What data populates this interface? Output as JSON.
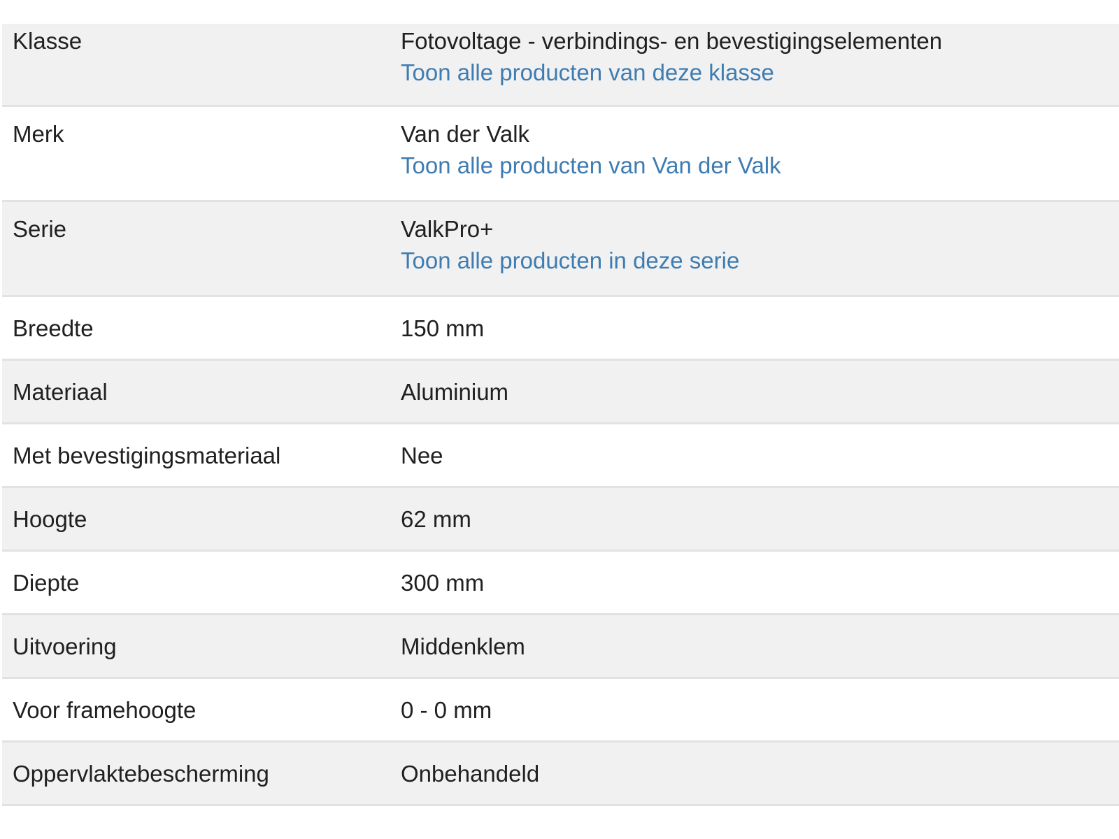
{
  "table": {
    "rows": [
      {
        "label": "Klasse",
        "value": "Fotovoltage - verbindings- en bevestigingselementen",
        "link": "Toon alle producten van deze klasse"
      },
      {
        "label": "Merk",
        "value": "Van der Valk",
        "link": "Toon alle producten van Van der Valk"
      },
      {
        "label": "Serie",
        "value": "ValkPro+",
        "link": "Toon alle producten in deze serie"
      },
      {
        "label": "Breedte",
        "value": "150 mm"
      },
      {
        "label": "Materiaal",
        "value": "Aluminium"
      },
      {
        "label": "Met bevestigingsmateriaal",
        "value": "Nee"
      },
      {
        "label": "Hoogte",
        "value": "62 mm"
      },
      {
        "label": "Diepte",
        "value": "300 mm"
      },
      {
        "label": "Uitvoering",
        "value": "Middenklem"
      },
      {
        "label": "Voor framehoogte",
        "value": "0 - 0 mm"
      },
      {
        "label": "Oppervlaktebescherming",
        "value": "Onbehandeld"
      }
    ],
    "colors": {
      "row_alt_bg": "#f1f1f1",
      "row_bg": "#ffffff",
      "divider": "#e2e2e2",
      "text": "#202020",
      "link": "#3e7cb1"
    }
  }
}
